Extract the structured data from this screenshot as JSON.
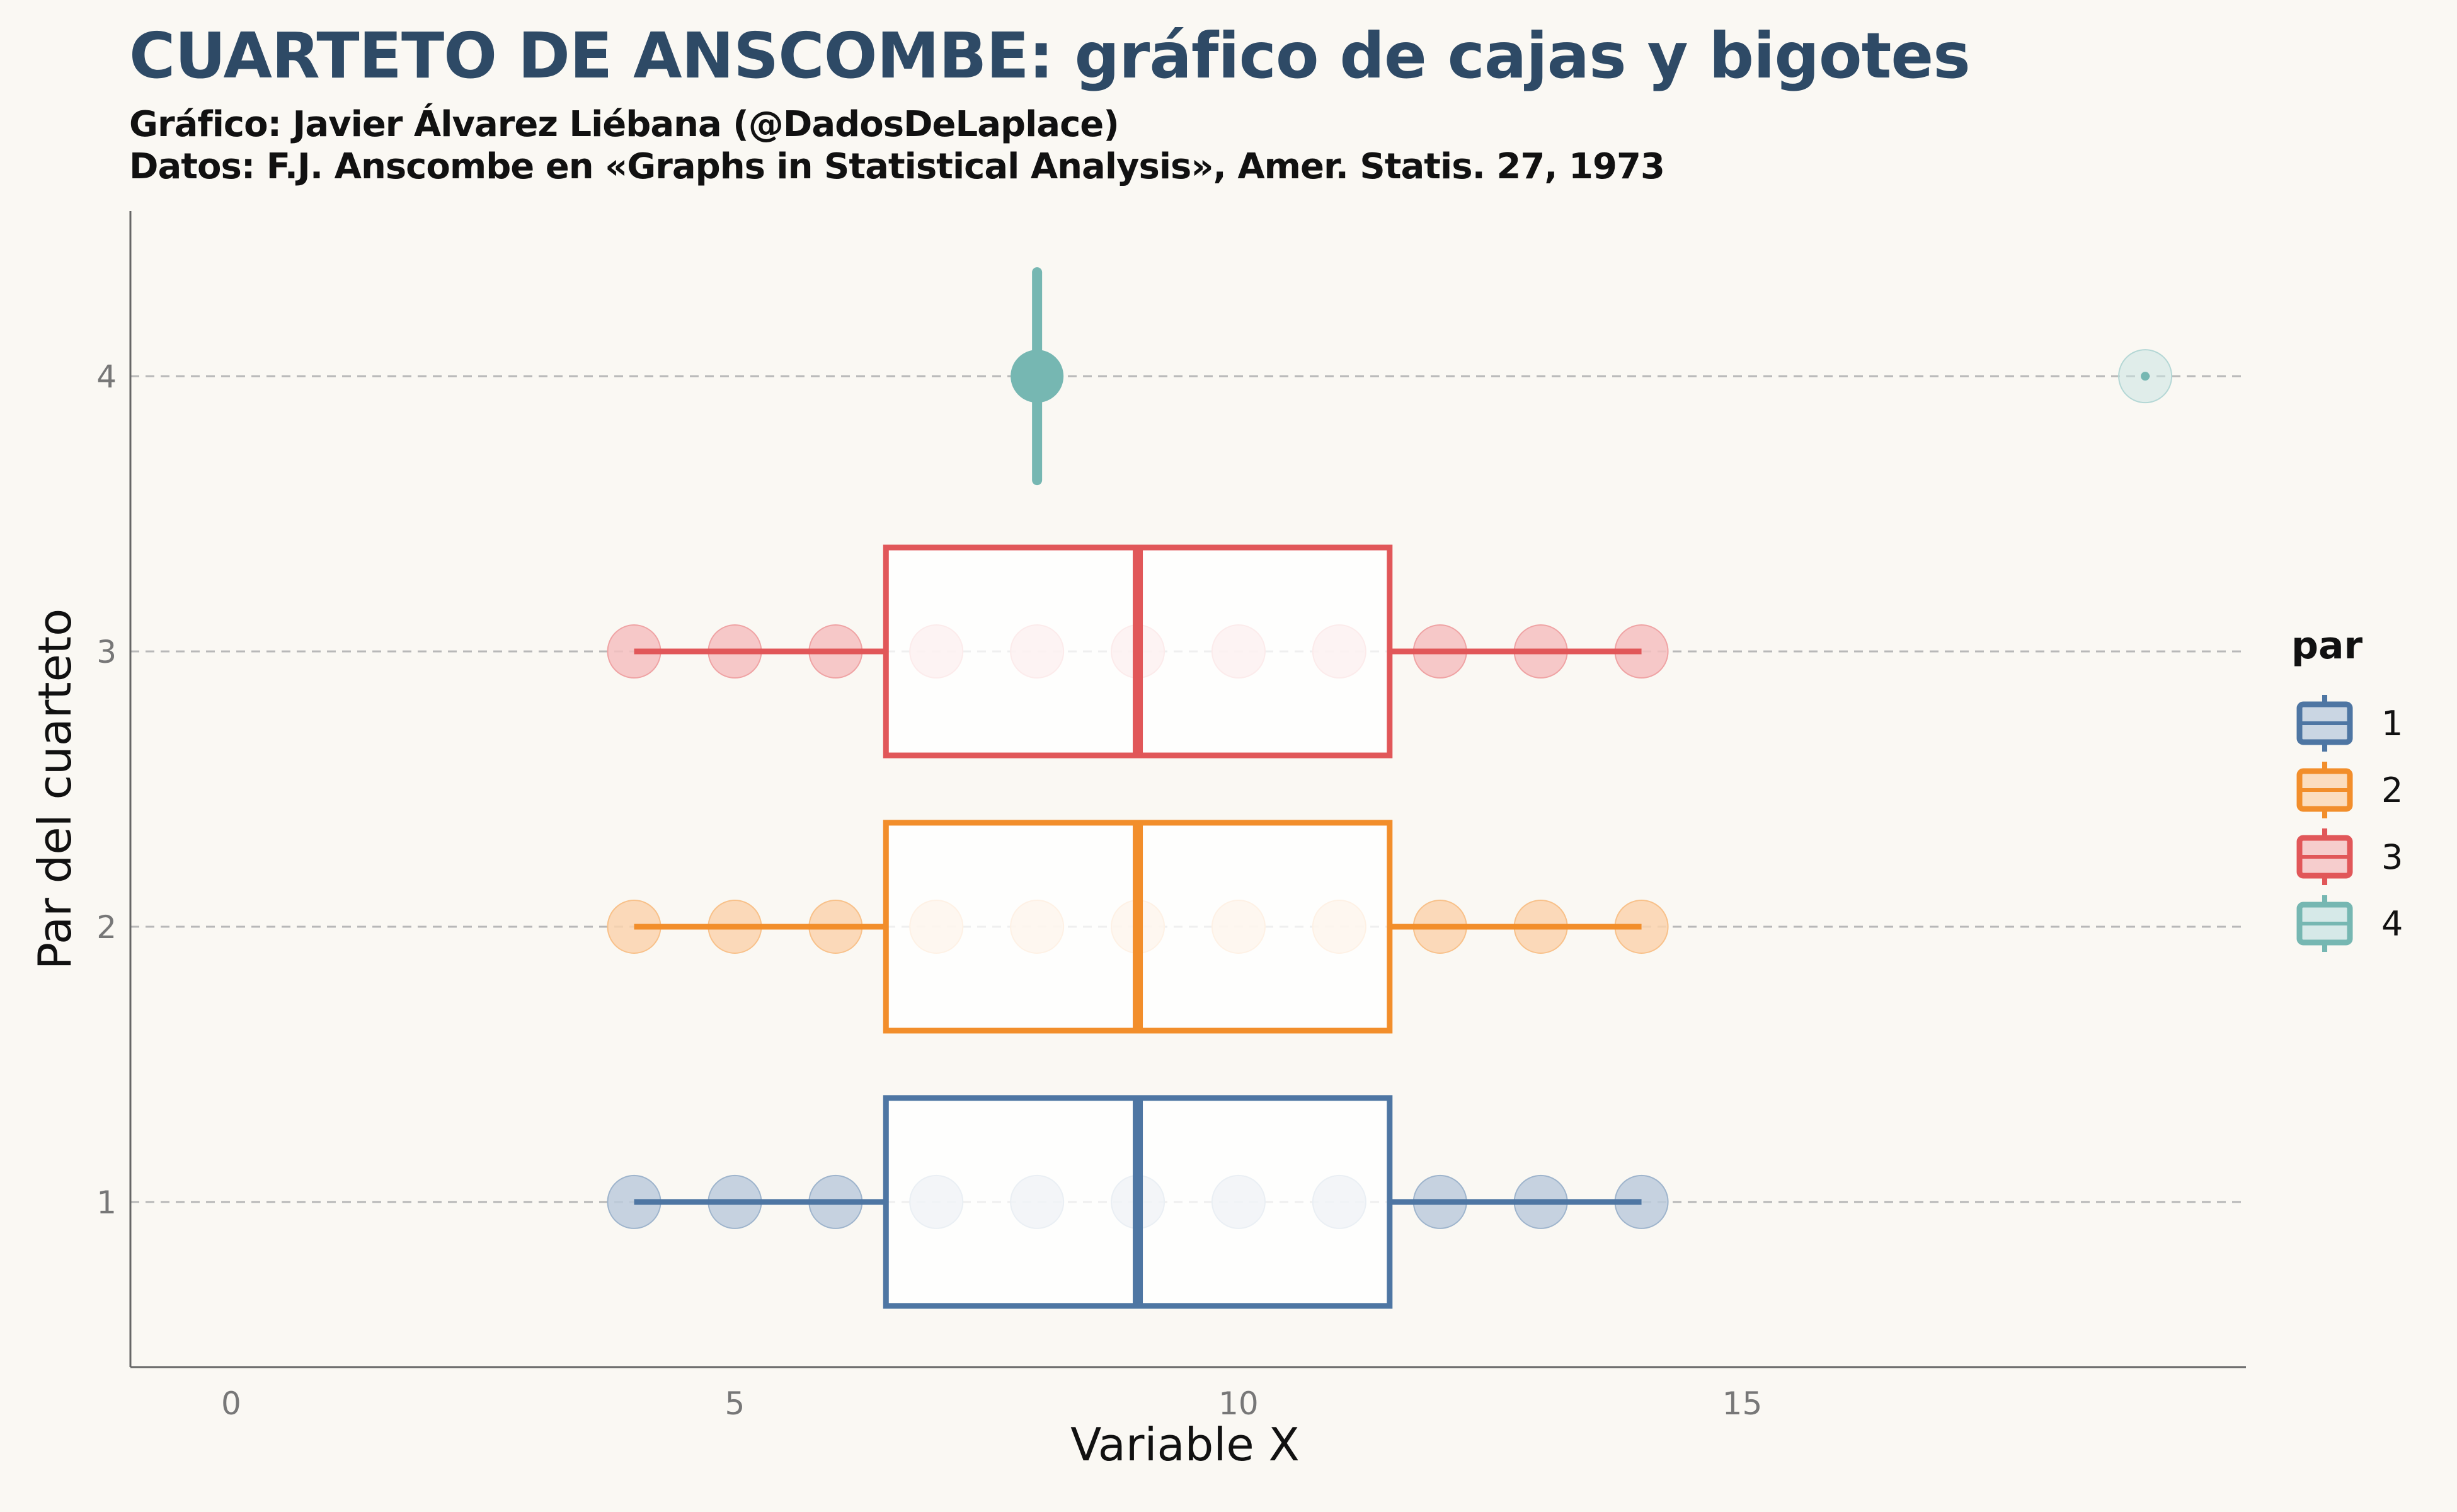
{
  "title": "CUARTETO DE ANSCOMBE: gráfico de cajas y bigotes",
  "subtitle_1": "Gráfico: Javier Álvarez Liébana (@DadosDeLaplace)",
  "subtitle_2": "Datos: F.J. Anscombe en «Graphs in Statistical Analysis», Amer. Statis. 27, 1973",
  "chart_data": {
    "type": "boxplot",
    "xlabel": "Variable X",
    "ylabel": "Par del cuarteto",
    "xlim": [
      -1,
      20
    ],
    "ylim": [
      0.4,
      4.6
    ],
    "x_ticks": [
      0,
      5,
      10,
      15
    ],
    "y_ticks": [
      1,
      2,
      3,
      4
    ],
    "legend": {
      "title": "par",
      "position": "right"
    },
    "series": [
      {
        "name": "1",
        "color": "#4e76a3",
        "y": 1,
        "points": [
          4,
          5,
          6,
          7,
          8,
          9,
          10,
          11,
          12,
          13,
          14
        ],
        "box": {
          "min": 4,
          "q1": 6.5,
          "median": 9,
          "q3": 11.5,
          "max": 14
        },
        "outliers": []
      },
      {
        "name": "2",
        "color": "#f28e2b",
        "y": 2,
        "points": [
          4,
          5,
          6,
          7,
          8,
          9,
          10,
          11,
          12,
          13,
          14
        ],
        "box": {
          "min": 4,
          "q1": 6.5,
          "median": 9,
          "q3": 11.5,
          "max": 14
        },
        "outliers": []
      },
      {
        "name": "3",
        "color": "#e15759",
        "y": 3,
        "points": [
          4,
          5,
          6,
          7,
          8,
          9,
          10,
          11,
          12,
          13,
          14
        ],
        "box": {
          "min": 4,
          "q1": 6.5,
          "median": 9,
          "q3": 11.5,
          "max": 14
        },
        "outliers": []
      },
      {
        "name": "4",
        "color": "#76b7b2",
        "y": 4,
        "points": [
          8,
          8,
          8,
          8,
          8,
          8,
          8,
          8,
          8,
          8,
          19
        ],
        "box": {
          "min": 8,
          "q1": 8,
          "median": 8,
          "q3": 8,
          "max": 8
        },
        "outliers": [
          19
        ]
      }
    ]
  }
}
